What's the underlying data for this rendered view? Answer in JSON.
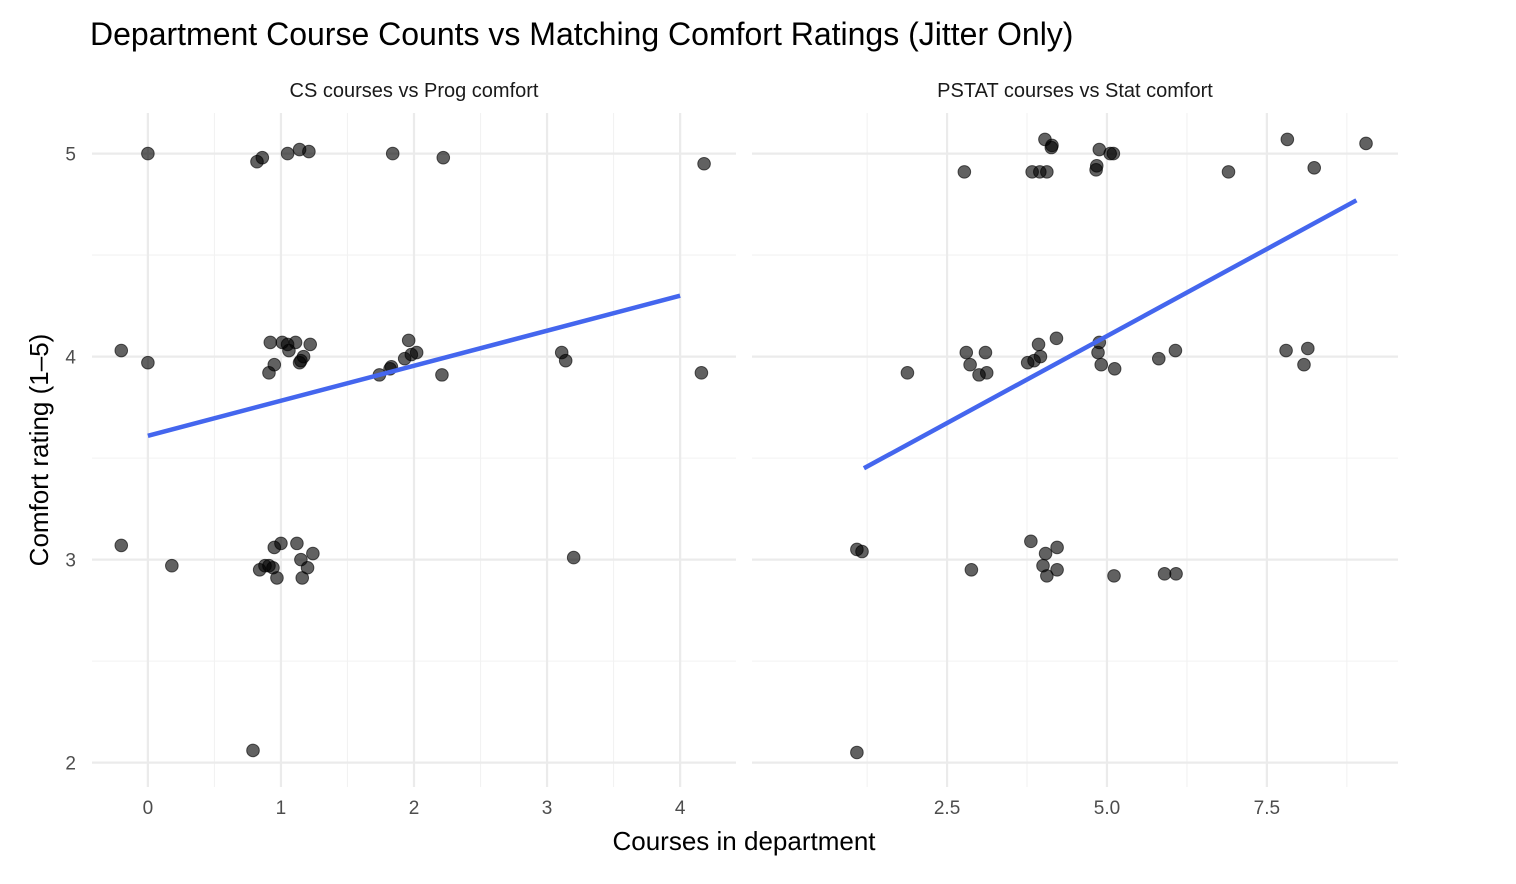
{
  "title": "Department Course Counts vs Matching Comfort Ratings (Jitter Only)",
  "xlabel": "Courses in department",
  "ylabel": "Comfort rating (1–5)",
  "chart_data": [
    {
      "type": "scatter",
      "facet": "CS courses vs Prog comfort",
      "xticks": [
        "0",
        "1",
        "2",
        "3",
        "4"
      ],
      "xtick_values": [
        0,
        1,
        2,
        3,
        4
      ],
      "yticks": [
        "2",
        "3",
        "4",
        "5"
      ],
      "ytick_values": [
        2,
        3,
        4,
        5
      ],
      "xlim": [
        -0.42,
        4.42
      ],
      "ylim": [
        1.88,
        5.2
      ],
      "grid": true,
      "points": [
        [
          0.0,
          5.0
        ],
        [
          0.82,
          4.96
        ],
        [
          0.86,
          4.98
        ],
        [
          1.05,
          5.0
        ],
        [
          1.14,
          5.02
        ],
        [
          1.21,
          5.01
        ],
        [
          1.84,
          5.0
        ],
        [
          2.22,
          4.98
        ],
        [
          4.18,
          4.95
        ],
        [
          -0.2,
          4.03
        ],
        [
          0.0,
          3.97
        ],
        [
          0.92,
          4.07
        ],
        [
          1.01,
          4.07
        ],
        [
          1.05,
          4.06
        ],
        [
          1.06,
          4.03
        ],
        [
          1.11,
          4.07
        ],
        [
          1.14,
          3.97
        ],
        [
          1.15,
          3.98
        ],
        [
          1.17,
          4.0
        ],
        [
          1.22,
          4.06
        ],
        [
          0.95,
          3.96
        ],
        [
          0.91,
          3.92
        ],
        [
          1.74,
          3.91
        ],
        [
          1.82,
          3.94
        ],
        [
          1.83,
          3.95
        ],
        [
          1.93,
          3.99
        ],
        [
          1.96,
          4.08
        ],
        [
          1.98,
          4.01
        ],
        [
          2.02,
          4.02
        ],
        [
          2.21,
          3.91
        ],
        [
          3.11,
          4.02
        ],
        [
          3.14,
          3.98
        ],
        [
          4.16,
          3.92
        ],
        [
          -0.2,
          3.07
        ],
        [
          0.18,
          2.97
        ],
        [
          0.84,
          2.95
        ],
        [
          0.88,
          2.97
        ],
        [
          0.91,
          2.97
        ],
        [
          0.94,
          2.96
        ],
        [
          0.95,
          3.06
        ],
        [
          0.97,
          2.91
        ],
        [
          1.0,
          3.08
        ],
        [
          1.12,
          3.08
        ],
        [
          1.15,
          3.0
        ],
        [
          1.16,
          2.91
        ],
        [
          1.2,
          2.96
        ],
        [
          1.24,
          3.03
        ],
        [
          3.2,
          3.01
        ],
        [
          0.79,
          2.06
        ]
      ],
      "fit": {
        "x": [
          0,
          4
        ],
        "y": [
          3.61,
          4.3
        ]
      }
    },
    {
      "type": "scatter",
      "facet": "PSTAT courses vs Stat comfort",
      "xticks": [
        "2.5",
        "5.0",
        "7.5"
      ],
      "xtick_values": [
        2.5,
        5.0,
        7.5
      ],
      "yticks": [
        "2",
        "3",
        "4",
        "5"
      ],
      "ytick_values": [
        2,
        3,
        4,
        5
      ],
      "xlim": [
        -0.55,
        9.55
      ],
      "ylim": [
        1.88,
        5.2
      ],
      "grid": true,
      "points": [
        [
          2.77,
          4.91
        ],
        [
          3.83,
          4.91
        ],
        [
          3.95,
          4.91
        ],
        [
          4.06,
          4.91
        ],
        [
          4.03,
          5.07
        ],
        [
          4.14,
          5.04
        ],
        [
          4.13,
          5.03
        ],
        [
          4.83,
          4.92
        ],
        [
          4.84,
          4.94
        ],
        [
          4.88,
          5.02
        ],
        [
          5.05,
          5.0
        ],
        [
          5.1,
          5.0
        ],
        [
          6.9,
          4.91
        ],
        [
          7.82,
          5.07
        ],
        [
          8.24,
          4.93
        ],
        [
          9.05,
          5.05
        ],
        [
          1.88,
          3.92
        ],
        [
          2.8,
          4.02
        ],
        [
          2.86,
          3.96
        ],
        [
          3.0,
          3.91
        ],
        [
          3.1,
          4.02
        ],
        [
          3.12,
          3.92
        ],
        [
          3.76,
          3.97
        ],
        [
          3.86,
          3.98
        ],
        [
          3.93,
          4.06
        ],
        [
          3.96,
          4.0
        ],
        [
          4.21,
          4.09
        ],
        [
          4.86,
          4.02
        ],
        [
          4.88,
          4.07
        ],
        [
          4.91,
          3.96
        ],
        [
          5.12,
          3.94
        ],
        [
          5.81,
          3.99
        ],
        [
          6.07,
          4.03
        ],
        [
          7.8,
          4.03
        ],
        [
          8.08,
          3.96
        ],
        [
          8.14,
          4.04
        ],
        [
          1.09,
          3.05
        ],
        [
          1.17,
          3.04
        ],
        [
          2.88,
          2.95
        ],
        [
          3.81,
          3.09
        ],
        [
          4.0,
          2.97
        ],
        [
          4.04,
          3.03
        ],
        [
          4.06,
          2.92
        ],
        [
          4.22,
          2.95
        ],
        [
          4.22,
          3.06
        ],
        [
          5.11,
          2.92
        ],
        [
          5.9,
          2.93
        ],
        [
          6.08,
          2.93
        ],
        [
          1.09,
          2.05
        ]
      ],
      "fit": {
        "x": [
          1.2,
          8.9
        ],
        "y": [
          3.45,
          4.77
        ]
      }
    }
  ]
}
